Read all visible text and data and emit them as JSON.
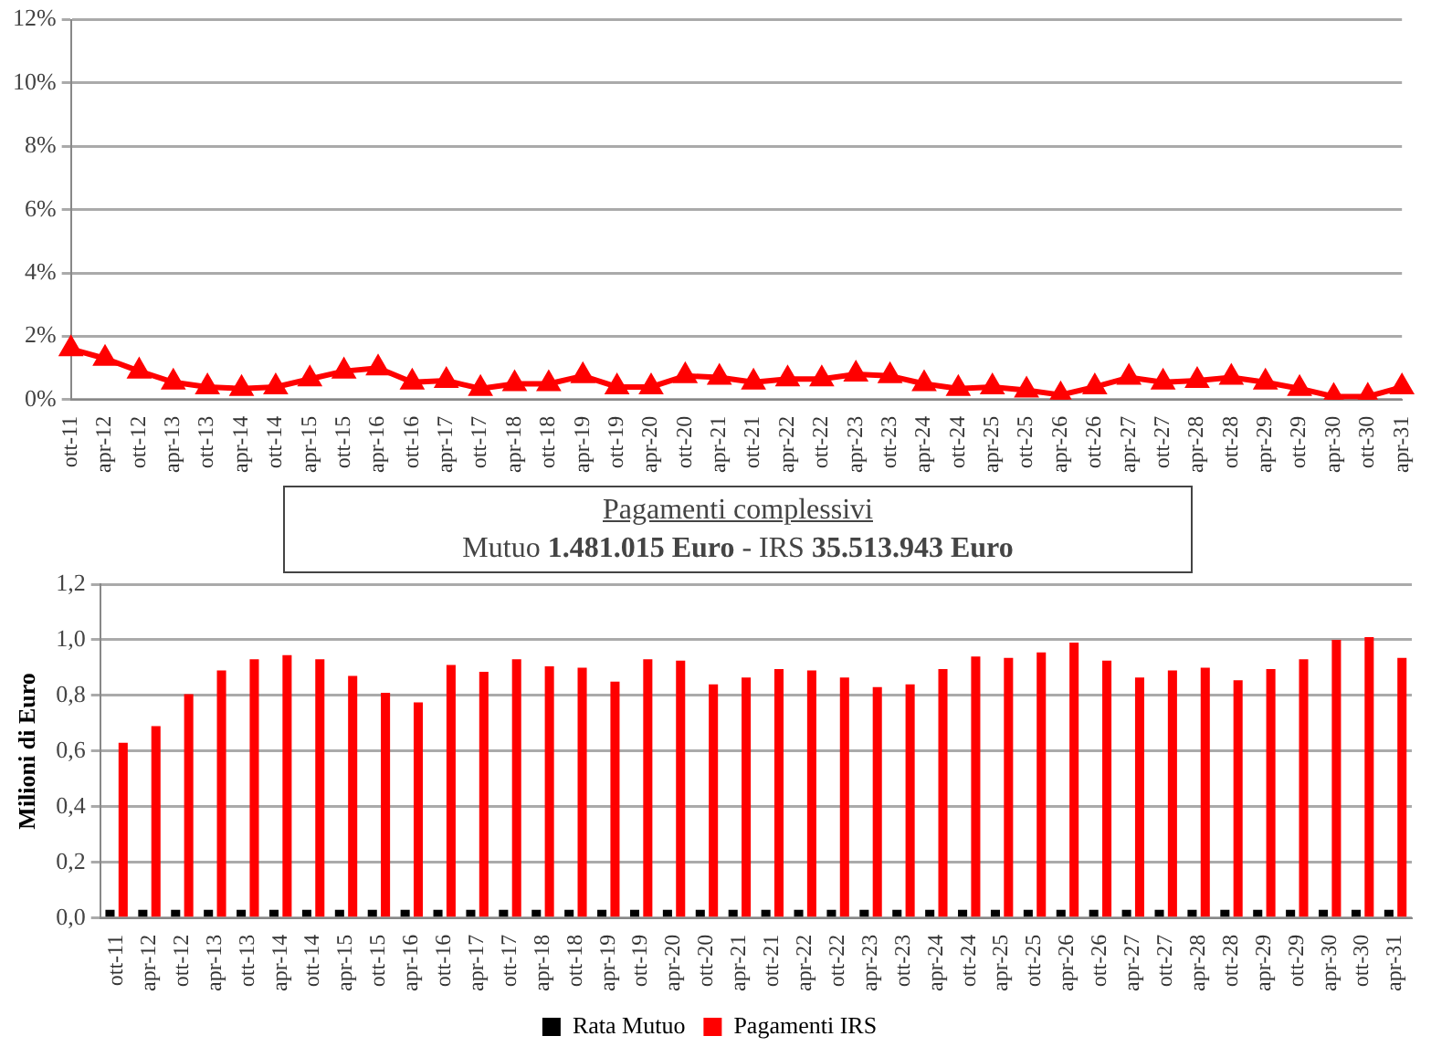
{
  "chart_data": [
    {
      "type": "line",
      "categories": [
        "ott-11",
        "apr-12",
        "ott-12",
        "apr-13",
        "ott-13",
        "apr-14",
        "ott-14",
        "apr-15",
        "ott-15",
        "apr-16",
        "ott-16",
        "apr-17",
        "ott-17",
        "apr-18",
        "ott-18",
        "apr-19",
        "ott-19",
        "apr-20",
        "ott-20",
        "apr-21",
        "ott-21",
        "apr-22",
        "ott-22",
        "apr-23",
        "ott-23",
        "apr-24",
        "ott-24",
        "apr-25",
        "ott-25",
        "apr-26",
        "ott-26",
        "apr-27",
        "ott-27",
        "apr-28",
        "ott-28",
        "apr-29",
        "ott-29",
        "apr-30",
        "ott-30",
        "apr-31"
      ],
      "series": [
        {
          "color": "#ff0000",
          "values": [
            1.6,
            1.3,
            0.9,
            0.55,
            0.4,
            0.35,
            0.4,
            0.65,
            0.9,
            1.0,
            0.55,
            0.6,
            0.35,
            0.5,
            0.5,
            0.75,
            0.4,
            0.4,
            0.75,
            0.7,
            0.55,
            0.65,
            0.65,
            0.8,
            0.75,
            0.5,
            0.35,
            0.4,
            0.3,
            0.15,
            0.4,
            0.7,
            0.55,
            0.6,
            0.7,
            0.55,
            0.35,
            0.1,
            0.1,
            0.4
          ]
        }
      ],
      "ylim": [
        0,
        12
      ],
      "yticks": [
        {
          "value": 0,
          "label": "0%"
        },
        {
          "value": 2,
          "label": "2%"
        },
        {
          "value": 4,
          "label": "4%"
        },
        {
          "value": 6,
          "label": "6%"
        },
        {
          "value": 8,
          "label": "8%"
        },
        {
          "value": 10,
          "label": "10%"
        },
        {
          "value": 12,
          "label": "12%"
        }
      ],
      "grid": "y",
      "marker": "triangle",
      "line_style": "solid"
    },
    {
      "type": "bar",
      "categories": [
        "ott-11",
        "apr-12",
        "ott-12",
        "apr-13",
        "ott-13",
        "apr-14",
        "ott-14",
        "apr-15",
        "ott-15",
        "apr-16",
        "ott-16",
        "apr-17",
        "ott-17",
        "apr-18",
        "ott-18",
        "apr-19",
        "ott-19",
        "apr-20",
        "ott-20",
        "apr-21",
        "ott-21",
        "apr-22",
        "ott-22",
        "apr-23",
        "ott-23",
        "apr-24",
        "ott-24",
        "apr-25",
        "ott-25",
        "apr-26",
        "ott-26",
        "apr-27",
        "ott-27",
        "apr-28",
        "ott-28",
        "apr-29",
        "ott-29",
        "apr-30",
        "ott-30",
        "apr-31"
      ],
      "series": [
        {
          "name": "Rata Mutuo",
          "color": "#000000",
          "values": [
            0.03,
            0.03,
            0.03,
            0.03,
            0.03,
            0.03,
            0.03,
            0.03,
            0.03,
            0.03,
            0.03,
            0.03,
            0.03,
            0.03,
            0.03,
            0.03,
            0.03,
            0.03,
            0.03,
            0.03,
            0.03,
            0.03,
            0.03,
            0.03,
            0.03,
            0.03,
            0.03,
            0.03,
            0.03,
            0.03,
            0.03,
            0.03,
            0.03,
            0.03,
            0.03,
            0.03,
            0.03,
            0.03,
            0.03,
            0.03
          ]
        },
        {
          "name": "Pagamenti IRS",
          "color": "#ff0000",
          "values": [
            0.63,
            0.69,
            0.805,
            0.89,
            0.93,
            0.945,
            0.93,
            0.87,
            0.81,
            0.775,
            0.91,
            0.885,
            0.93,
            0.905,
            0.9,
            0.85,
            0.93,
            0.925,
            0.84,
            0.865,
            0.895,
            0.89,
            0.865,
            0.83,
            0.84,
            0.895,
            0.94,
            0.935,
            0.955,
            0.99,
            0.925,
            0.865,
            0.89,
            0.9,
            0.855,
            0.895,
            0.93,
            1.0,
            1.01,
            0.935
          ]
        }
      ],
      "ylabel": "Milioni di Euro",
      "ylim": [
        0,
        1.2
      ],
      "yticks": [
        {
          "value": 0,
          "label": "0,0"
        },
        {
          "value": 0.2,
          "label": "0,2"
        },
        {
          "value": 0.4,
          "label": "0,4"
        },
        {
          "value": 0.6,
          "label": "0,6"
        },
        {
          "value": 0.8,
          "label": "0,8"
        },
        {
          "value": 1.0,
          "label": "1,0"
        },
        {
          "value": 1.2,
          "label": "1,2"
        }
      ],
      "grid": "y",
      "legend": "bottom",
      "annotations": [
        "Pagamenti complessivi",
        "Mutuo 1.481.015 Euro - IRS 35.513.943 Euro"
      ]
    }
  ]
}
